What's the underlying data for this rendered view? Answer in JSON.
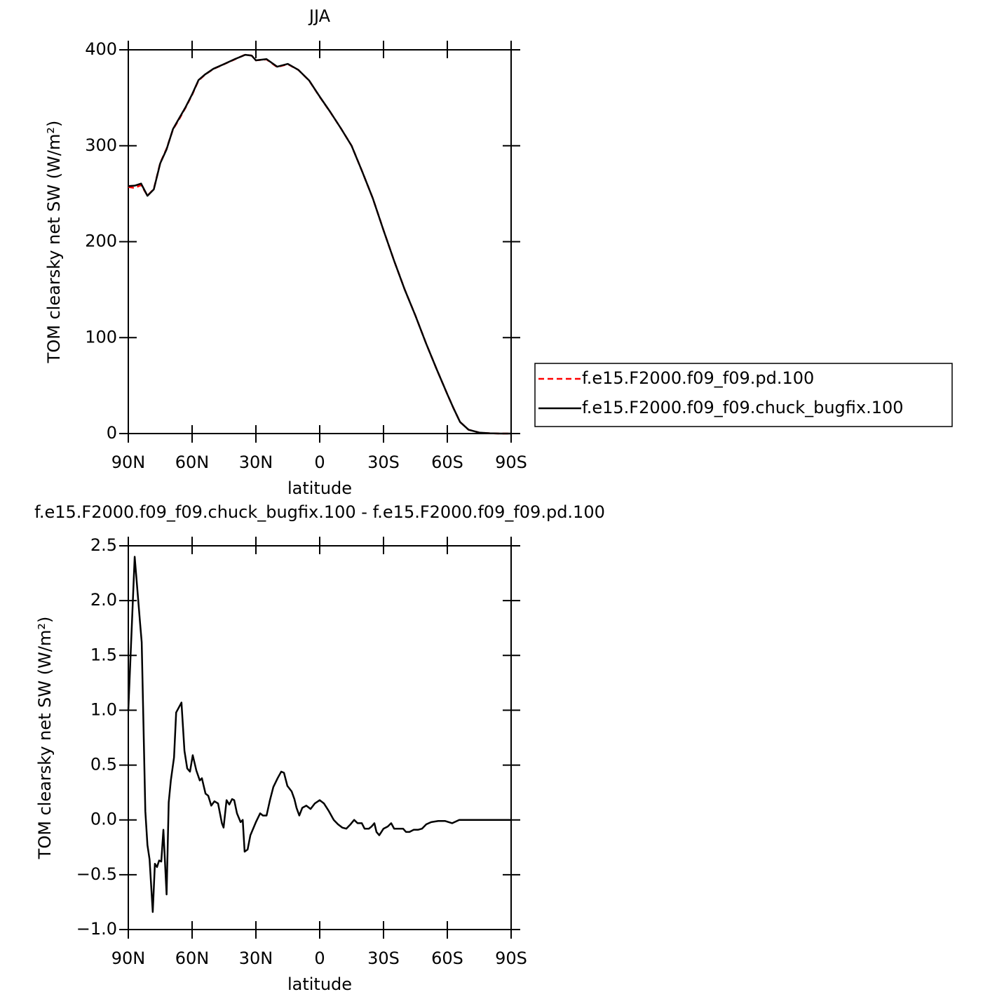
{
  "chart_data": [
    {
      "type": "line",
      "title": "JJA",
      "xlabel": "latitude",
      "ylabel": "TOM clearsky net SW (W/m²)",
      "x": [
        90,
        87,
        84,
        81,
        78,
        75,
        72,
        69,
        66,
        63,
        60,
        57,
        54,
        50,
        45,
        40,
        35,
        32,
        30,
        25,
        20,
        15,
        10,
        5,
        0,
        -5,
        -10,
        -15,
        -20,
        -25,
        -30,
        -35,
        -40,
        -45,
        -50,
        -55,
        -60,
        -63,
        -66,
        -70,
        -75,
        -80,
        -85,
        -90
      ],
      "series": [
        {
          "name": "f.e15.F2000.f09_f09.pd.100",
          "color": "#ff0000",
          "linestyle": "dashed",
          "values": [
            257,
            256,
            259,
            248,
            255,
            282,
            297,
            317,
            328,
            340,
            353,
            368,
            374,
            380,
            385,
            390,
            395,
            394,
            389,
            390,
            382,
            385,
            379,
            368,
            351,
            335,
            318,
            300,
            273,
            245,
            212,
            180,
            150,
            123,
            94,
            67,
            41,
            26,
            12,
            4,
            1,
            0.3,
            0,
            0
          ]
        },
        {
          "name": "f.e15.F2000.f09_f09.chuck_bugfix.100",
          "color": "#000000",
          "linestyle": "solid",
          "values": [
            258,
            258.4,
            260.6,
            247.8,
            254.6,
            281.6,
            296.3,
            317.4,
            329,
            340.5,
            353.6,
            368.4,
            374.2,
            380.2,
            385.1,
            390.2,
            394.8,
            394,
            389,
            390.3,
            382.4,
            385.3,
            379,
            368.1,
            351.2,
            335.1,
            318,
            299.9,
            273,
            245,
            211.9,
            180,
            149.9,
            122.9,
            94,
            67,
            41,
            26,
            12,
            4,
            1,
            0.3,
            0,
            0
          ]
        }
      ],
      "xlim": [
        90,
        -90
      ],
      "xticks": [
        {
          "value": 90,
          "label": "90N"
        },
        {
          "value": 60,
          "label": "60N"
        },
        {
          "value": 30,
          "label": "30N"
        },
        0,
        {
          "value": -30,
          "label": "30S"
        },
        {
          "value": -60,
          "label": "60S"
        },
        {
          "value": -90,
          "label": "90S"
        }
      ],
      "ylim": [
        0,
        400
      ],
      "yticks": [
        0,
        100,
        200,
        300,
        400
      ],
      "legend": "right"
    },
    {
      "type": "line",
      "title": "f.e15.F2000.f09_f09.chuck_bugfix.100 - f.e15.F2000.f09_f09.pd.100",
      "xlabel": "latitude",
      "ylabel": "TOM clearsky net SW (W/m²)",
      "x": [
        90,
        87,
        84.4,
        83.7,
        82,
        81,
        80,
        78.5,
        77.5,
        76.5,
        75.5,
        74.5,
        73.5,
        72,
        71,
        70,
        68.5,
        67.5,
        65,
        63.6,
        62.3,
        61,
        59.7,
        58,
        56.4,
        55.4,
        53.7,
        52.4,
        51,
        49.5,
        47.8,
        46,
        45.2,
        43.8,
        42.5,
        41.2,
        40.2,
        38.9,
        37.2,
        36.2,
        35.3,
        33.9,
        32.6,
        30,
        28,
        26.7,
        25,
        23.4,
        21.8,
        19.8,
        18.1,
        16.8,
        15.2,
        13.2,
        11.9,
        10.9,
        9.6,
        8.2,
        6.3,
        4.3,
        2.3,
        0,
        -2,
        -4.3,
        -6.6,
        -8.6,
        -10.6,
        -12.5,
        -14.5,
        -16.2,
        -17.8,
        -19.8,
        -21.1,
        -23.1,
        -24.4,
        -25.7,
        -26.7,
        -28,
        -30,
        -32,
        -33.6,
        -35,
        -37,
        -39.2,
        -40.6,
        -42.2,
        -44.2,
        -46.2,
        -48.1,
        -50.1,
        -52.4,
        -55.7,
        -59,
        -62.3,
        -65.6,
        -70.6,
        -80.5,
        -90
      ],
      "series": [
        {
          "name": "difference",
          "color": "#000000",
          "linestyle": "solid",
          "values": [
            1.0,
            2.4,
            1.78,
            1.62,
            0.08,
            -0.23,
            -0.36,
            -0.84,
            -0.4,
            -0.43,
            -0.37,
            -0.38,
            -0.09,
            -0.68,
            0.16,
            0.36,
            0.57,
            0.98,
            1.07,
            0.63,
            0.47,
            0.44,
            0.59,
            0.45,
            0.36,
            0.38,
            0.24,
            0.22,
            0.13,
            0.17,
            0.15,
            -0.03,
            -0.07,
            0.18,
            0.14,
            0.19,
            0.18,
            0.06,
            -0.02,
            0,
            -0.29,
            -0.27,
            -0.14,
            -0.02,
            0.06,
            0.04,
            0.04,
            0.18,
            0.3,
            0.38,
            0.44,
            0.43,
            0.31,
            0.26,
            0.19,
            0.11,
            0.04,
            0.11,
            0.13,
            0.1,
            0.15,
            0.18,
            0.15,
            0.08,
            0,
            -0.04,
            -0.07,
            -0.08,
            -0.04,
            0,
            -0.03,
            -0.03,
            -0.08,
            -0.08,
            -0.06,
            -0.03,
            -0.11,
            -0.14,
            -0.08,
            -0.06,
            -0.03,
            -0.08,
            -0.08,
            -0.08,
            -0.11,
            -0.11,
            -0.09,
            -0.09,
            -0.08,
            -0.04,
            -0.02,
            -0.01,
            -0.01,
            -0.03,
            0,
            0,
            0,
            0
          ]
        }
      ],
      "xlim": [
        90,
        -90
      ],
      "xticks": [
        {
          "value": 90,
          "label": "90N"
        },
        {
          "value": 60,
          "label": "60N"
        },
        {
          "value": 30,
          "label": "30N"
        },
        0,
        {
          "value": -30,
          "label": "30S"
        },
        {
          "value": -60,
          "label": "60S"
        },
        {
          "value": -90,
          "label": "90S"
        }
      ],
      "ylim": [
        -1.0,
        2.5
      ],
      "yticks": [
        {
          "value": -1.0,
          "label": "−1.0"
        },
        {
          "value": -0.5,
          "label": "−0.5"
        },
        {
          "value": 0,
          "label": "0.0"
        },
        0.5,
        {
          "value": 1.0,
          "label": "1.0"
        },
        1.5,
        {
          "value": 2.0,
          "label": "2.0"
        },
        2.5
      ]
    }
  ]
}
